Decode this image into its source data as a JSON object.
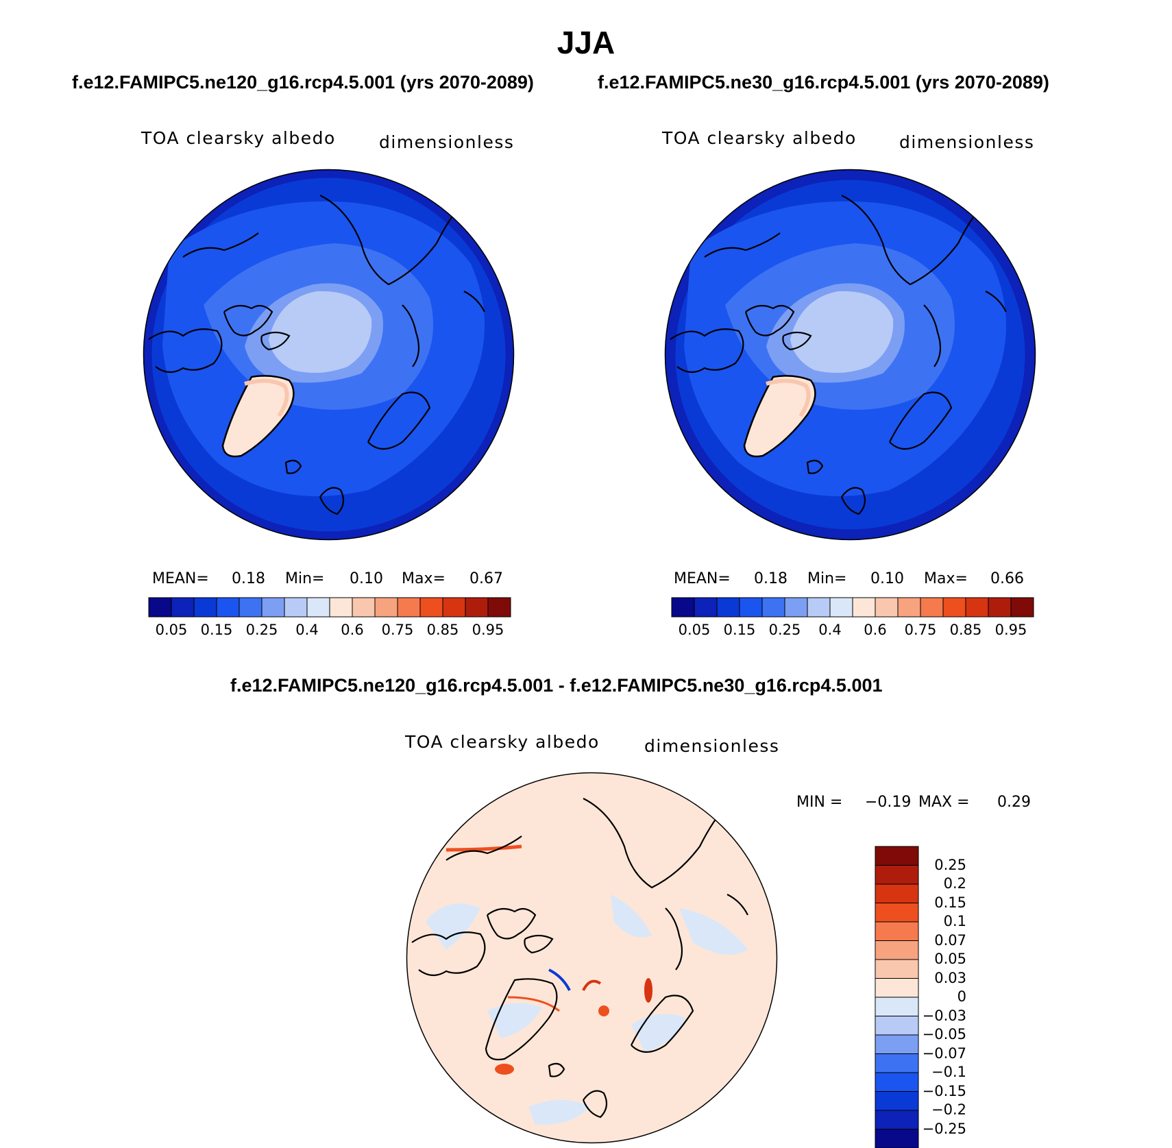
{
  "title": "JJA",
  "panels": [
    {
      "case_title": "f.e12.FAMIPC5.ne120_g16.rcp4.5.001 (yrs 2070-2089)",
      "var_label": "TOA clearsky albedo",
      "units_label": "dimensionless",
      "stats": {
        "mean_label": "MEAN=",
        "mean": "0.18",
        "min_label": "Min=",
        "min": "0.10",
        "max_label": "Max=",
        "max": "0.67"
      },
      "colorbar_ticks": [
        "0.05",
        "0.15",
        "0.25",
        "0.4",
        "0.6",
        "0.75",
        "0.85",
        "0.95"
      ]
    },
    {
      "case_title": "f.e12.FAMIPC5.ne30_g16.rcp4.5.001 (yrs 2070-2089)",
      "var_label": "TOA clearsky albedo",
      "units_label": "dimensionless",
      "stats": {
        "mean_label": "MEAN=",
        "mean": "0.18",
        "min_label": "Min=",
        "min": "0.10",
        "max_label": "Max=",
        "max": "0.66"
      },
      "colorbar_ticks": [
        "0.05",
        "0.15",
        "0.25",
        "0.4",
        "0.6",
        "0.75",
        "0.85",
        "0.95"
      ]
    }
  ],
  "diff_panel": {
    "case_title": "f.e12.FAMIPC5.ne120_g16.rcp4.5.001 - f.e12.FAMIPC5.ne30_g16.rcp4.5.001",
    "var_label": "TOA clearsky albedo",
    "units_label": "dimensionless",
    "stats": {
      "min_label": "MIN =",
      "min": "−0.19",
      "max_label": "MAX =",
      "max": "0.29"
    },
    "colorbar_ticks": [
      "0.25",
      "0.2",
      "0.15",
      "0.1",
      "0.07",
      "0.05",
      "0.03",
      "0",
      "−0.03",
      "−0.05",
      "−0.07",
      "−0.1",
      "−0.15",
      "−0.2",
      "−0.25"
    ]
  },
  "colors": {
    "abs_palette": [
      "#08088a",
      "#0c22b8",
      "#0a3ad6",
      "#1b55ef",
      "#3d73f3",
      "#7c9ff4",
      "#b7cbf6",
      "#d9e7f8",
      "#fde6d7",
      "#f9c7ae",
      "#f7a37f",
      "#f57a4e",
      "#ee4f1f",
      "#d73412",
      "#ae1d0c",
      "#7f0b08"
    ],
    "diff_palette": [
      "#08088a",
      "#0c22b8",
      "#0a3ad6",
      "#1b55ef",
      "#3d73f3",
      "#7c9ff4",
      "#b7cbf6",
      "#d9e7f8",
      "#fde6d7",
      "#f9c7ae",
      "#f7a37f",
      "#f57a4e",
      "#ee4f1f",
      "#d73412",
      "#ae1d0c",
      "#7f0b08"
    ]
  }
}
